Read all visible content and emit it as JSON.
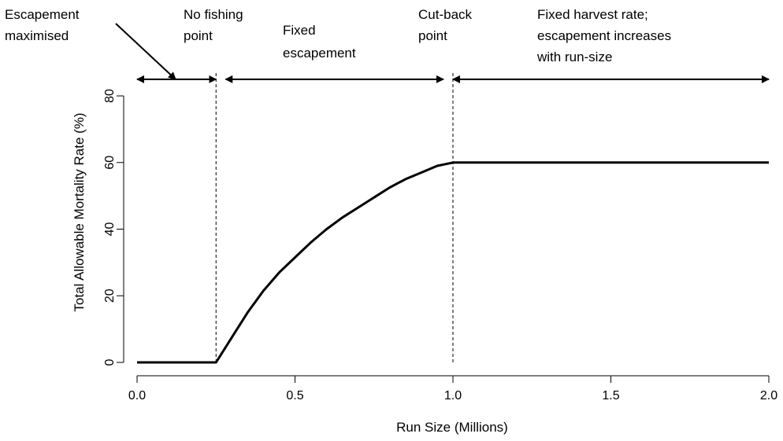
{
  "chart_data": {
    "type": "line",
    "title": "",
    "xlabel": "Run Size (Millions)",
    "ylabel": "Total Allowable Mortality Rate (%)",
    "xlim": [
      0,
      2
    ],
    "ylim": [
      0,
      90
    ],
    "x_ticks": [
      {
        "value": 0.0,
        "label": "0.0"
      },
      {
        "value": 0.5,
        "label": "0.5"
      },
      {
        "value": 1.0,
        "label": "1.0"
      },
      {
        "value": 1.5,
        "label": "1.5"
      },
      {
        "value": 2.0,
        "label": "2.0"
      }
    ],
    "y_ticks": [
      {
        "value": 0,
        "label": "0"
      },
      {
        "value": 20,
        "label": "20"
      },
      {
        "value": 40,
        "label": "40"
      },
      {
        "value": 60,
        "label": "60"
      },
      {
        "value": 80,
        "label": "80"
      }
    ],
    "grid": false,
    "series": [
      {
        "color": "#000000",
        "x": [
          0.0,
          0.25,
          0.3,
          0.35,
          0.4,
          0.45,
          0.5,
          0.55,
          0.6,
          0.65,
          0.7,
          0.75,
          0.8,
          0.85,
          0.9,
          0.95,
          1.0,
          1.25,
          1.5,
          1.75,
          2.0
        ],
        "y": [
          0,
          0,
          7.5,
          15,
          21.5,
          27,
          31.5,
          36,
          40,
          43.5,
          46.5,
          49.5,
          52.5,
          55,
          57,
          59,
          60,
          60,
          60,
          60,
          60
        ]
      }
    ],
    "reference_lines": [
      {
        "axis": "x",
        "value": 0.25,
        "style": "dashed"
      },
      {
        "axis": "x",
        "value": 1.0,
        "style": "dashed"
      }
    ],
    "range_arrows": [
      {
        "from": 0.0,
        "to": 0.25,
        "y": 85
      },
      {
        "from": 0.28,
        "to": 0.97,
        "y": 85
      },
      {
        "from": 1.0,
        "to": 2.0,
        "y": 85
      }
    ],
    "annotations": [
      {
        "lines": [
          "Escapement",
          "maximised"
        ]
      },
      {
        "lines": [
          "No fishing",
          "point"
        ]
      },
      {
        "lines": [
          "Fixed",
          "escapement"
        ]
      },
      {
        "lines": [
          "Cut-back",
          "point"
        ]
      },
      {
        "lines": [
          "Fixed harvest rate;",
          "escapement increases",
          "with run-size"
        ]
      }
    ]
  }
}
